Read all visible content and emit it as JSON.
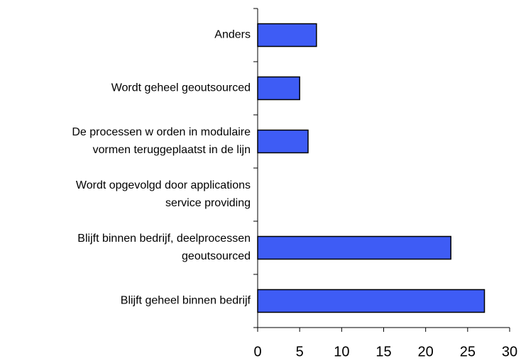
{
  "chart_data": {
    "type": "bar",
    "orientation": "horizontal",
    "categories": [
      "Anders",
      "Wordt geheel geoutsourced",
      "De processen w orden in modulaire\nvormen teruggeplaatst in de lijn",
      "Wordt opgevolgd door applications\nservice providing",
      "Blijft binnen bedrijf, deelprocessen\ngeoutsourced",
      "Blijft geheel binnen bedrijf"
    ],
    "values": [
      7,
      5,
      6,
      0,
      23,
      27
    ],
    "color": "#3e5cf5",
    "xlim": [
      0,
      30
    ],
    "xticks": [
      0,
      5,
      10,
      15,
      20,
      25,
      30
    ],
    "grid": false
  }
}
